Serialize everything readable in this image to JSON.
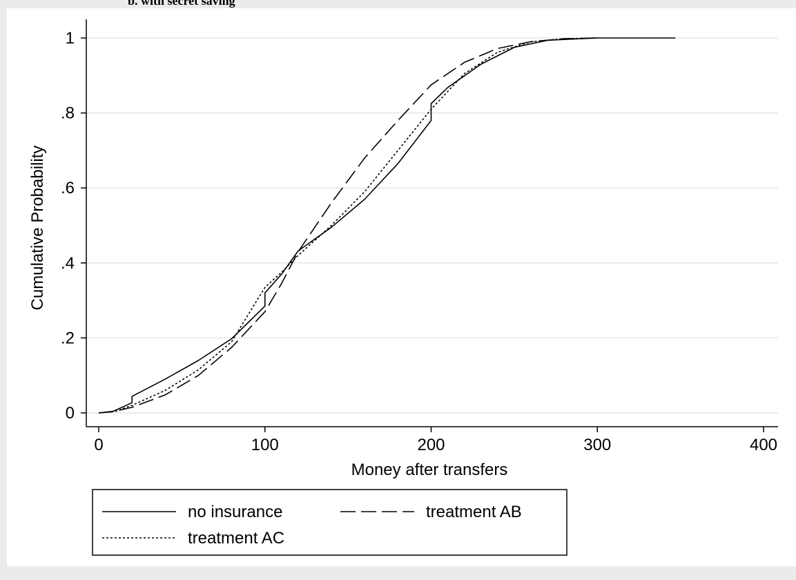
{
  "caption": "b. with secret saving",
  "chart_data": {
    "type": "line",
    "title": "",
    "xlabel": "Money after transfers",
    "ylabel": "Cumulative Probability",
    "xlim": [
      0,
      400
    ],
    "ylim": [
      0,
      1
    ],
    "x_ticks": [
      0,
      100,
      200,
      300,
      400
    ],
    "x_tick_labels": [
      "0",
      "100",
      "200",
      "300",
      "400"
    ],
    "y_ticks": [
      0,
      0.2,
      0.4,
      0.6,
      0.8,
      1
    ],
    "y_tick_labels": [
      "0",
      ".2",
      ".4",
      ".6",
      ".8",
      "1"
    ],
    "grid": "horizontal",
    "legend_position": "bottom",
    "series": [
      {
        "name": "no insurance",
        "style": "solid",
        "color": "#000000",
        "points": [
          [
            0,
            0
          ],
          [
            8,
            0.003
          ],
          [
            20,
            0.027
          ],
          [
            20,
            0.044
          ],
          [
            40,
            0.09
          ],
          [
            60,
            0.14
          ],
          [
            80,
            0.198
          ],
          [
            100,
            0.285
          ],
          [
            100,
            0.32
          ],
          [
            110,
            0.37
          ],
          [
            120,
            0.432
          ],
          [
            140,
            0.495
          ],
          [
            160,
            0.57
          ],
          [
            180,
            0.665
          ],
          [
            200,
            0.78
          ],
          [
            200,
            0.825
          ],
          [
            210,
            0.868
          ],
          [
            230,
            0.93
          ],
          [
            250,
            0.975
          ],
          [
            270,
            0.994
          ],
          [
            300,
            1.0
          ],
          [
            347,
            1.0
          ]
        ]
      },
      {
        "name": "treatment AB",
        "style": "dashed",
        "color": "#000000",
        "points": [
          [
            0,
            0
          ],
          [
            10,
            0.005
          ],
          [
            20,
            0.015
          ],
          [
            40,
            0.048
          ],
          [
            60,
            0.1
          ],
          [
            80,
            0.175
          ],
          [
            100,
            0.27
          ],
          [
            110,
            0.345
          ],
          [
            120,
            0.43
          ],
          [
            140,
            0.56
          ],
          [
            160,
            0.68
          ],
          [
            180,
            0.78
          ],
          [
            200,
            0.875
          ],
          [
            220,
            0.935
          ],
          [
            240,
            0.972
          ],
          [
            260,
            0.99
          ],
          [
            280,
            0.998
          ],
          [
            300,
            1.0
          ]
        ]
      },
      {
        "name": "treatment AC",
        "style": "dotted",
        "color": "#000000",
        "points": [
          [
            0,
            0
          ],
          [
            10,
            0.004
          ],
          [
            20,
            0.02
          ],
          [
            40,
            0.06
          ],
          [
            60,
            0.115
          ],
          [
            80,
            0.19
          ],
          [
            100,
            0.335
          ],
          [
            110,
            0.375
          ],
          [
            120,
            0.42
          ],
          [
            140,
            0.5
          ],
          [
            160,
            0.59
          ],
          [
            180,
            0.7
          ],
          [
            200,
            0.81
          ],
          [
            220,
            0.905
          ],
          [
            240,
            0.962
          ],
          [
            260,
            0.99
          ],
          [
            280,
            0.998
          ],
          [
            300,
            1.0
          ]
        ]
      }
    ]
  }
}
